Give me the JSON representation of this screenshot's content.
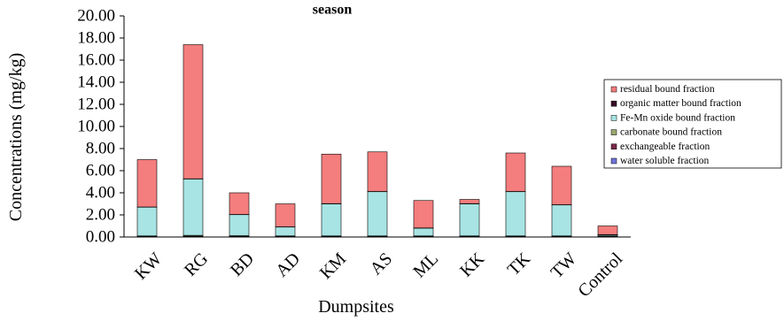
{
  "chart_data": {
    "type": "bar",
    "stacked": true,
    "title": "season",
    "xlabel": "Dumpsites",
    "ylabel": "Concentrations (mg/kg)",
    "ylim": [
      0,
      20
    ],
    "yticks": [
      "0.00",
      "2.00",
      "4.00",
      "6.00",
      "8.00",
      "10.00",
      "12.00",
      "14.00",
      "16.00",
      "18.00",
      "20.00"
    ],
    "grid": false,
    "legend_position": "right",
    "categories": [
      "KW",
      "RG",
      "BD",
      "AD",
      "KM",
      "AS",
      "ML",
      "KK",
      "TK",
      "TW",
      "Control"
    ],
    "series": [
      {
        "name": "water soluble fraction",
        "color": "#6f74d8",
        "values": [
          0.02,
          0.03,
          0.02,
          0.02,
          0.02,
          0.02,
          0.02,
          0.02,
          0.02,
          0.02,
          0.02
        ]
      },
      {
        "name": "exchangeable fraction",
        "color": "#7a2a4a",
        "values": [
          0.03,
          0.05,
          0.04,
          0.03,
          0.03,
          0.03,
          0.03,
          0.03,
          0.03,
          0.03,
          0.03
        ]
      },
      {
        "name": "carbonate bound fraction",
        "color": "#9aa86f",
        "values": [
          0.05,
          0.07,
          0.06,
          0.05,
          0.05,
          0.05,
          0.05,
          0.05,
          0.05,
          0.05,
          0.05
        ]
      },
      {
        "name": "Fe-Mn oxide bound fraction",
        "color": "#a8e4e4",
        "values": [
          2.6,
          5.1,
          1.9,
          0.8,
          2.9,
          4.0,
          0.7,
          2.9,
          4.0,
          2.8,
          0.1
        ]
      },
      {
        "name": "organic matter bound fraction",
        "color": "#3a0a28",
        "values": [
          0.02,
          0.02,
          0.02,
          0.02,
          0.02,
          0.02,
          0.02,
          0.02,
          0.02,
          0.02,
          0.02
        ]
      },
      {
        "name": "residual bound fraction",
        "color": "#f47d7d",
        "values": [
          4.28,
          12.13,
          1.96,
          2.08,
          4.48,
          3.58,
          2.48,
          0.38,
          3.48,
          3.48,
          0.78
        ]
      }
    ]
  }
}
